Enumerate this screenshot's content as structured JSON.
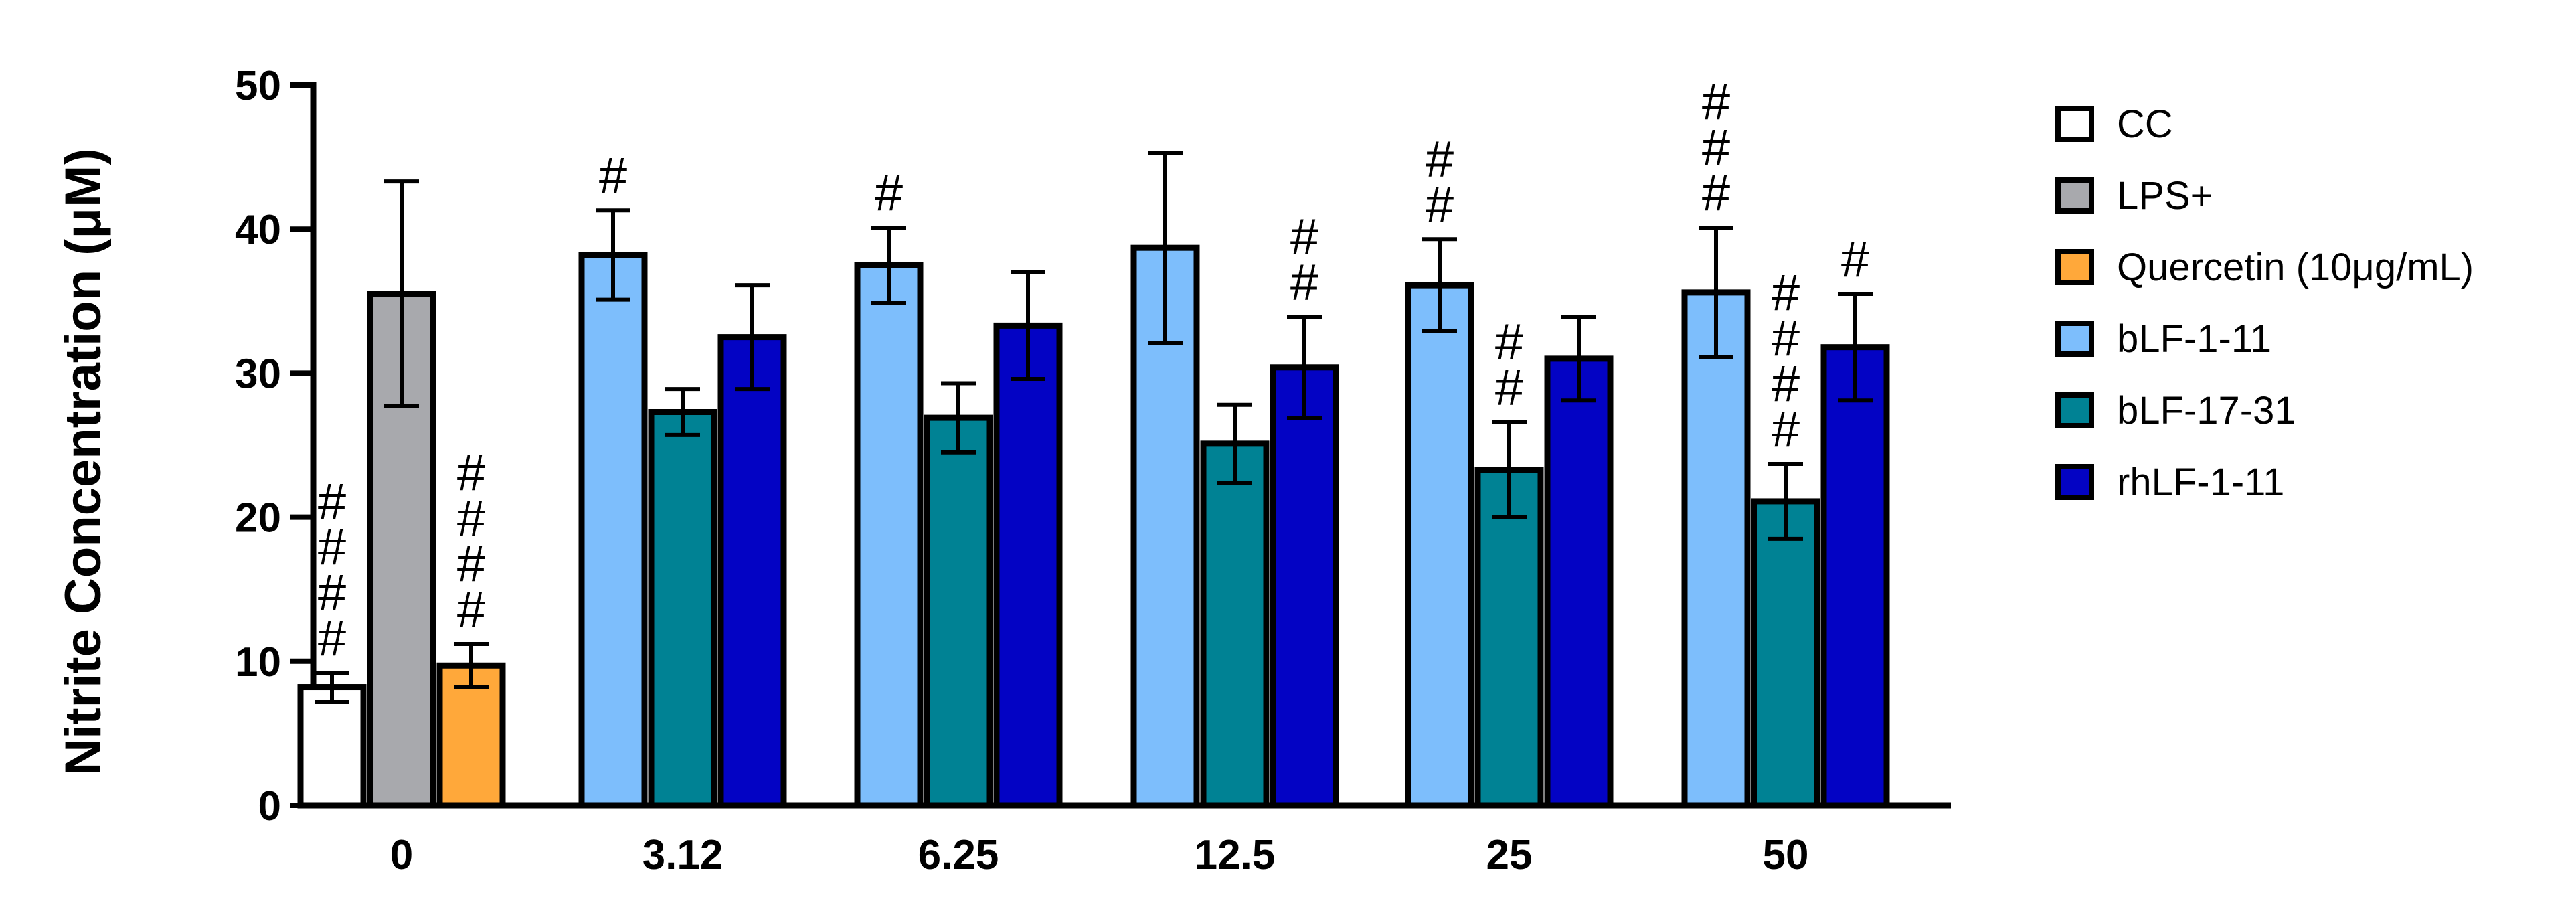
{
  "chart_data": {
    "type": "bar",
    "title": "",
    "xlabel": "",
    "ylabel": "Nitrite Concentration (μM)",
    "ylim": [
      0,
      50
    ],
    "yticks": [
      "0",
      "10",
      "20",
      "30",
      "40",
      "50"
    ],
    "grid": false,
    "legend_position": "right",
    "groups": [
      {
        "category": "0",
        "bars": [
          {
            "series": "CC",
            "value": 8.2,
            "error": 1.0,
            "sig": "####"
          },
          {
            "series": "LPS+",
            "value": 35.5,
            "error": 7.8,
            "sig": ""
          },
          {
            "series": "Quercetin (10μg/mL)",
            "value": 9.7,
            "error": 1.5,
            "sig": "####"
          }
        ]
      },
      {
        "category": "3.12",
        "bars": [
          {
            "series": "bLF-1-11",
            "value": 38.2,
            "error": 3.1,
            "sig": "#"
          },
          {
            "series": "bLF-17-31",
            "value": 27.3,
            "error": 1.6,
            "sig": ""
          },
          {
            "series": "rhLF-1-11",
            "value": 32.5,
            "error": 3.6,
            "sig": ""
          }
        ]
      },
      {
        "category": "6.25",
        "bars": [
          {
            "series": "bLF-1-11",
            "value": 37.5,
            "error": 2.6,
            "sig": "#"
          },
          {
            "series": "bLF-17-31",
            "value": 26.9,
            "error": 2.4,
            "sig": ""
          },
          {
            "series": "rhLF-1-11",
            "value": 33.3,
            "error": 3.7,
            "sig": ""
          }
        ]
      },
      {
        "category": "12.5",
        "bars": [
          {
            "series": "bLF-1-11",
            "value": 38.7,
            "error": 6.6,
            "sig": ""
          },
          {
            "series": "bLF-17-31",
            "value": 25.1,
            "error": 2.7,
            "sig": ""
          },
          {
            "series": "rhLF-1-11",
            "value": 30.4,
            "error": 3.5,
            "sig": "##"
          }
        ]
      },
      {
        "category": "25",
        "bars": [
          {
            "series": "bLF-1-11",
            "value": 36.1,
            "error": 3.2,
            "sig": "##"
          },
          {
            "series": "bLF-17-31",
            "value": 23.3,
            "error": 3.3,
            "sig": "##"
          },
          {
            "series": "rhLF-1-11",
            "value": 31.0,
            "error": 2.9,
            "sig": ""
          }
        ]
      },
      {
        "category": "50",
        "bars": [
          {
            "series": "bLF-1-11",
            "value": 35.6,
            "error": 4.5,
            "sig": "###"
          },
          {
            "series": "bLF-17-31",
            "value": 21.1,
            "error": 2.6,
            "sig": "####"
          },
          {
            "series": "rhLF-1-11",
            "value": 31.8,
            "error": 3.7,
            "sig": "#"
          }
        ]
      }
    ],
    "legend": [
      {
        "name": "CC",
        "color": "#ffffff"
      },
      {
        "name": "LPS+",
        "color": "#a8a9ad"
      },
      {
        "name": "Quercetin (10μg/mL)",
        "color": "#ffa83a"
      },
      {
        "name": "bLF-1-11",
        "color": "#7dbefc"
      },
      {
        "name": "bLF-17-31",
        "color": "#008294"
      },
      {
        "name": "rhLF-1-11",
        "color": "#0303c4"
      }
    ]
  }
}
